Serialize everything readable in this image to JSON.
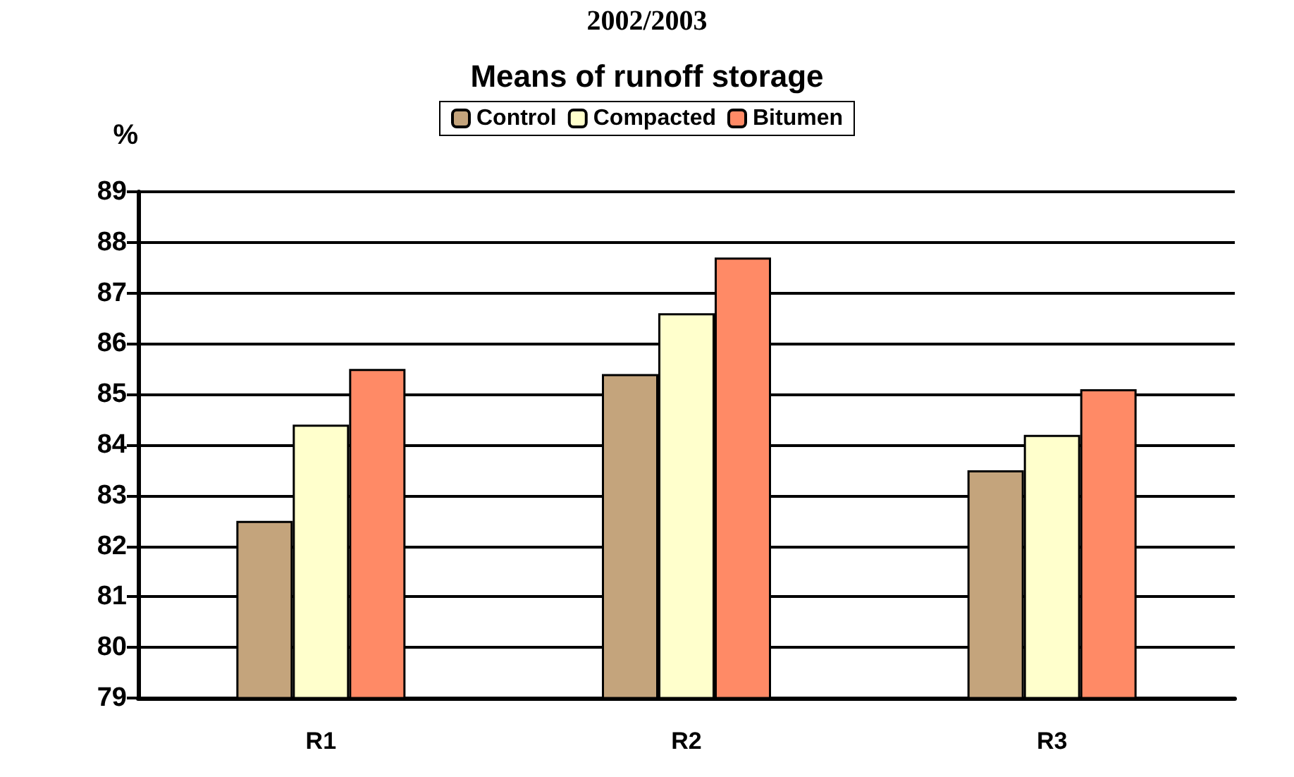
{
  "chart_data": {
    "type": "bar",
    "title": "2002/2003",
    "subtitle": "Means of runoff storage",
    "ylabel": "%",
    "categories": [
      "R1",
      "R2",
      "R3"
    ],
    "series": [
      {
        "name": "Control",
        "color": "#c4a47c",
        "values": [
          82.5,
          85.4,
          83.5
        ]
      },
      {
        "name": "Compacted",
        "color": "#ffffcc",
        "values": [
          84.4,
          86.6,
          84.2
        ]
      },
      {
        "name": "Bitumen",
        "color": "#ff8a66",
        "values": [
          85.5,
          87.7,
          85.1
        ]
      }
    ],
    "ylim": [
      79,
      89
    ],
    "yticks": [
      79,
      80,
      81,
      82,
      83,
      84,
      85,
      86,
      87,
      88,
      89
    ],
    "grid": "y",
    "legend": "top"
  }
}
